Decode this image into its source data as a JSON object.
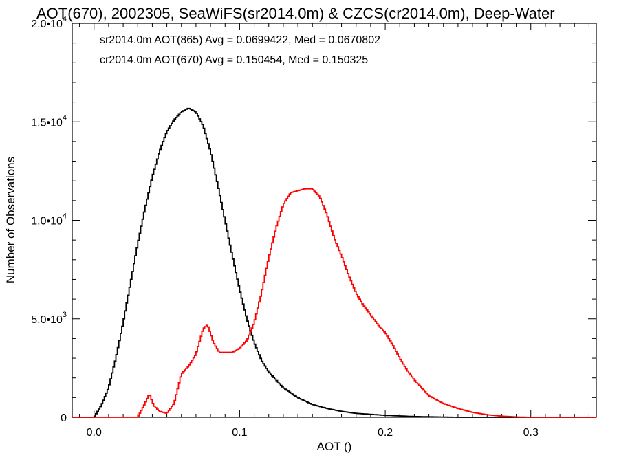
{
  "chart_data": {
    "type": "histogram-step",
    "title": "AOT(670), 2002305, SeaWiFS(sr2014.0m) & CZCS(cr2014.0m), Deep-Water",
    "xlabel": "AOT ()",
    "ylabel": "Number of Observations",
    "xlim": [
      -0.015,
      0.345
    ],
    "ylim": [
      0,
      20000
    ],
    "xticks": [
      0.0,
      0.1,
      0.2,
      0.3
    ],
    "xtick_labels": [
      "0.0",
      "0.1",
      "0.2",
      "0.3"
    ],
    "yticks": [
      0,
      5000,
      10000,
      15000,
      20000
    ],
    "ytick_labels": [
      {
        "mantissa": "0",
        "exp": ""
      },
      {
        "mantissa": "5.0•10",
        "exp": "3"
      },
      {
        "mantissa": "1.0•10",
        "exp": "4"
      },
      {
        "mantissa": "1.5•10",
        "exp": "4"
      },
      {
        "mantissa": "2.0•10",
        "exp": "4"
      }
    ],
    "legend_position": "top-left",
    "series": [
      {
        "name": "sr2014.0m AOT(865) Avg = 0.0699422, Med = 0.0670802",
        "color": "#000000",
        "x": [
          0.0,
          0.005,
          0.01,
          0.015,
          0.02,
          0.025,
          0.03,
          0.035,
          0.04,
          0.045,
          0.05,
          0.055,
          0.06,
          0.065,
          0.07,
          0.075,
          0.08,
          0.085,
          0.09,
          0.095,
          0.1,
          0.105,
          0.11,
          0.115,
          0.12,
          0.13,
          0.14,
          0.15,
          0.16,
          0.17,
          0.18,
          0.2,
          0.22,
          0.25
        ],
        "y": [
          0,
          600,
          1500,
          3000,
          4800,
          6800,
          8800,
          10600,
          12200,
          13500,
          14500,
          15100,
          15500,
          15700,
          15500,
          14800,
          13500,
          11800,
          10000,
          8200,
          6500,
          5000,
          3800,
          2900,
          2300,
          1500,
          1000,
          650,
          450,
          300,
          200,
          100,
          40,
          0
        ]
      },
      {
        "name": "cr2014.0m AOT(670) Avg = 0.150454, Med = 0.150325",
        "color": "#ff0000",
        "x": [
          0.03,
          0.035,
          0.038,
          0.041,
          0.045,
          0.05,
          0.055,
          0.06,
          0.065,
          0.07,
          0.075,
          0.078,
          0.082,
          0.086,
          0.09,
          0.095,
          0.1,
          0.105,
          0.11,
          0.115,
          0.12,
          0.125,
          0.13,
          0.135,
          0.14,
          0.145,
          0.15,
          0.155,
          0.16,
          0.165,
          0.17,
          0.175,
          0.18,
          0.185,
          0.19,
          0.195,
          0.2,
          0.205,
          0.21,
          0.215,
          0.22,
          0.225,
          0.23,
          0.235,
          0.24,
          0.25,
          0.26,
          0.27,
          0.28,
          0.29,
          0.3
        ],
        "y": [
          0,
          700,
          1200,
          600,
          300,
          200,
          700,
          2200,
          2600,
          3200,
          4500,
          4700,
          3800,
          3300,
          3300,
          3300,
          3500,
          3900,
          4800,
          6300,
          8100,
          9600,
          10800,
          11400,
          11500,
          11600,
          11600,
          11200,
          10300,
          9100,
          8200,
          7200,
          6300,
          5700,
          5200,
          4700,
          4300,
          3700,
          3000,
          2400,
          1900,
          1500,
          1100,
          900,
          700,
          450,
          250,
          130,
          60,
          20,
          0
        ]
      }
    ]
  }
}
